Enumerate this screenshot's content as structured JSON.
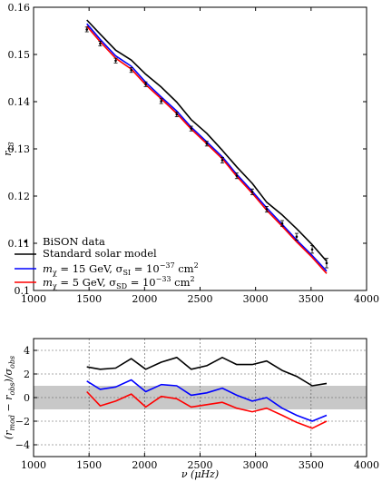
{
  "chart_data": [
    {
      "type": "line",
      "ylabel": "r13",
      "xlim": [
        1000,
        4000
      ],
      "ylim": [
        0.1,
        0.16
      ],
      "x_ticks": [
        1000,
        1500,
        2000,
        2500,
        3000,
        3500,
        4000
      ],
      "y_ticks": [
        0.1,
        0.11,
        0.12,
        0.13,
        0.14,
        0.15,
        0.16
      ],
      "y_tick_labels": [
        "0.1",
        "0.11",
        "0.12",
        "0.13",
        "0.14",
        "0.15",
        "0.16"
      ],
      "grid": false,
      "legend_position": "bottom-left",
      "x": [
        1480,
        1600,
        1740,
        1880,
        2010,
        2150,
        2290,
        2420,
        2560,
        2700,
        2830,
        2970,
        3100,
        3240,
        3370,
        3510,
        3640
      ],
      "series": [
        {
          "name": "BiSON data",
          "kind": "points",
          "color": "#000000",
          "values": [
            0.1553,
            0.1523,
            0.1487,
            0.1467,
            0.1437,
            0.1401,
            0.1373,
            0.1343,
            0.1311,
            0.1276,
            0.1243,
            0.1209,
            0.1172,
            0.1142,
            0.1114,
            0.1087,
            0.1058
          ],
          "errors": [
            0.0005,
            0.0005,
            0.0005,
            0.0005,
            0.0005,
            0.0005,
            0.0005,
            0.0005,
            0.0005,
            0.0006,
            0.0006,
            0.0006,
            0.0006,
            0.0006,
            0.0007,
            0.0008,
            0.001
          ]
        },
        {
          "name": "Standard solar model",
          "kind": "line",
          "color": "#000000",
          "values": [
            0.1573,
            0.1543,
            0.1509,
            0.1488,
            0.1458,
            0.1431,
            0.1399,
            0.1362,
            0.1333,
            0.1297,
            0.1262,
            0.1227,
            0.1187,
            0.116,
            0.1131,
            0.1097,
            0.1062
          ]
        },
        {
          "name": "mχ = 15 GeV, σSI = 10^-37 cm^2",
          "kind": "line",
          "color": "#0000ff",
          "values": [
            0.1565,
            0.1532,
            0.1497,
            0.1475,
            0.1441,
            0.141,
            0.138,
            0.1346,
            0.1315,
            0.1283,
            0.1246,
            0.121,
            0.1175,
            0.114,
            0.1107,
            0.1074,
            0.1041
          ]
        },
        {
          "name": "mχ = 5 GeV, σSD = 10^-33 cm^2",
          "kind": "line",
          "color": "#ff0000",
          "values": [
            0.156,
            0.1527,
            0.1492,
            0.1469,
            0.1436,
            0.1406,
            0.1375,
            0.1342,
            0.1311,
            0.1279,
            0.1242,
            0.1206,
            0.117,
            0.1136,
            0.1103,
            0.107,
            0.1036
          ]
        }
      ],
      "legend": {
        "bison": "BiSON data",
        "ssm": "Standard solar model",
        "blue_a": "m",
        "blue_sub": "χ",
        "blue_b": " = 15 GeV, σ",
        "blue_sub2": "SI",
        "blue_c": " = 10",
        "blue_sup": "−37",
        "blue_d": " cm",
        "blue_sup2": "2",
        "red_a": "m",
        "red_sub": "χ",
        "red_b": " = 5 GeV, σ",
        "red_sub2": "SD",
        "red_c": " = 10",
        "red_sup": "−33",
        "red_d": " cm",
        "red_sup2": "2"
      }
    },
    {
      "type": "line",
      "ylabel": "(rmod − robs)/σobs",
      "xlabel": "ν (μHz)",
      "xlim": [
        1000,
        4000
      ],
      "ylim": [
        -5,
        5
      ],
      "x_ticks": [
        1000,
        1500,
        2000,
        2500,
        3000,
        3500,
        4000
      ],
      "y_ticks": [
        -4,
        -2,
        0,
        2,
        4
      ],
      "y_tick_labels": [
        "−4",
        "−2",
        "0",
        "2",
        "4"
      ],
      "grid": true,
      "shaded_band": [
        -1,
        1
      ],
      "x": [
        1480,
        1600,
        1740,
        1880,
        2010,
        2150,
        2290,
        2420,
        2560,
        2700,
        2830,
        2970,
        3100,
        3240,
        3370,
        3510,
        3640
      ],
      "series": [
        {
          "color": "#000000",
          "values": [
            2.6,
            2.4,
            2.5,
            3.3,
            2.4,
            3.0,
            3.4,
            2.4,
            2.7,
            3.4,
            2.8,
            2.8,
            3.1,
            2.3,
            1.8,
            1.0,
            1.2
          ]
        },
        {
          "color": "#0000ff",
          "values": [
            1.4,
            0.7,
            0.9,
            1.5,
            0.5,
            1.1,
            1.0,
            0.2,
            0.4,
            0.8,
            0.2,
            -0.3,
            0.0,
            -0.9,
            -1.5,
            -2.0,
            -1.5
          ]
        },
        {
          "color": "#ff0000",
          "values": [
            0.5,
            -0.7,
            -0.3,
            0.3,
            -0.8,
            0.1,
            -0.1,
            -0.8,
            -0.6,
            -0.4,
            -0.9,
            -1.2,
            -0.9,
            -1.5,
            -2.1,
            -2.6,
            -2.0
          ]
        }
      ]
    }
  ]
}
